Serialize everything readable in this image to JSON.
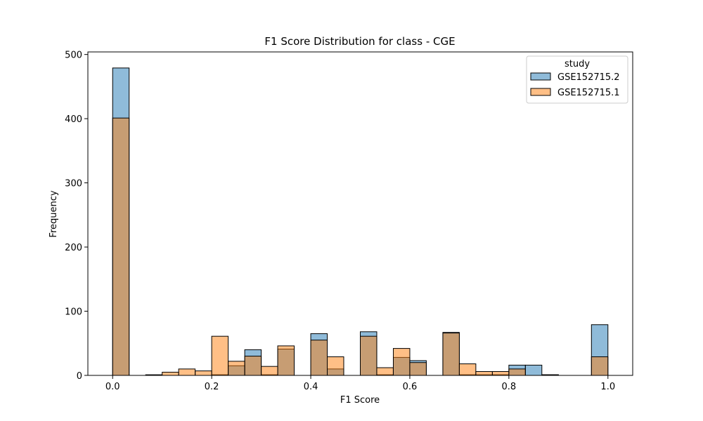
{
  "chart_data": {
    "type": "bar",
    "title": "F1 Score Distribution for class - CGE",
    "xlabel": "F1 Score",
    "ylabel": "Frequency",
    "xlim": [
      -0.05,
      1.05
    ],
    "ylim": [
      0,
      504
    ],
    "xticks": [
      0.0,
      0.2,
      0.4,
      0.6,
      0.8,
      1.0
    ],
    "xtick_labels": [
      "0.0",
      "0.2",
      "0.4",
      "0.6",
      "0.8",
      "1.0"
    ],
    "yticks": [
      0,
      100,
      200,
      300,
      400,
      500
    ],
    "ytick_labels": [
      "0",
      "100",
      "200",
      "300",
      "400",
      "500"
    ],
    "grid": false,
    "legend": {
      "title": "study",
      "position": "top-right"
    },
    "bin_width": 0.0333,
    "bin_starts": [
      0.0,
      0.0333,
      0.0667,
      0.1,
      0.1333,
      0.1667,
      0.2,
      0.2333,
      0.2667,
      0.3,
      0.3333,
      0.3667,
      0.4,
      0.4333,
      0.4667,
      0.5,
      0.5333,
      0.5667,
      0.6,
      0.6333,
      0.6667,
      0.7,
      0.7333,
      0.7667,
      0.8,
      0.8333,
      0.8667,
      0.9,
      0.9333,
      0.9667
    ],
    "series": [
      {
        "name": "GSE152715.2",
        "color": "#1f77b4",
        "values": [
          479,
          0,
          0,
          0,
          0,
          0,
          1,
          15,
          40,
          1,
          41,
          0,
          65,
          10,
          0,
          68,
          1,
          28,
          23,
          0,
          67,
          1,
          1,
          1,
          16,
          16,
          1,
          0,
          0,
          79
        ]
      },
      {
        "name": "GSE152715.1",
        "color": "#ff7f0e",
        "values": [
          401,
          0,
          1,
          5,
          10,
          7,
          61,
          22,
          30,
          14,
          46,
          0,
          55,
          29,
          0,
          61,
          12,
          42,
          20,
          0,
          66,
          18,
          6,
          6,
          10,
          0,
          1,
          0,
          0,
          29
        ]
      }
    ]
  }
}
